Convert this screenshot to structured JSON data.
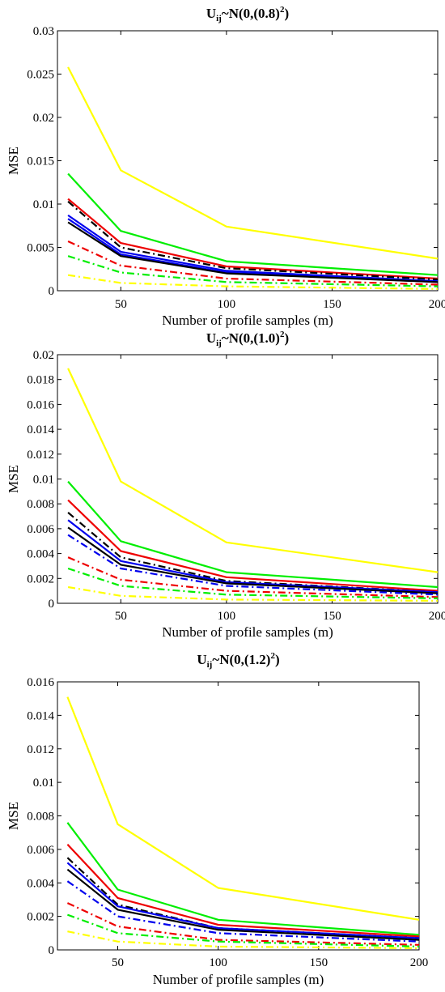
{
  "chart_data": [
    {
      "type": "line",
      "title": {
        "base": "U",
        "sub": "ij",
        "mid": "~N(0,(0.8)",
        "sup": "2",
        "end": ")"
      },
      "xlabel": "Number of profile samples (m)",
      "ylabel": "MSE",
      "x": [
        25,
        50,
        100,
        200
      ],
      "xticks": [
        "50",
        "100",
        "150",
        "200"
      ],
      "xtick_values": [
        50,
        100,
        150,
        200
      ],
      "xlim": [
        20,
        200
      ],
      "ylim": [
        0,
        0.03
      ],
      "yticks": [
        "0",
        "0.005",
        "0.01",
        "0.015",
        "0.02",
        "0.025",
        "0.03"
      ],
      "ytick_values": [
        0,
        0.005,
        0.01,
        0.015,
        0.02,
        0.025,
        0.03
      ],
      "grid": false,
      "series": [
        {
          "color": "#ffff00",
          "dash": "solid",
          "values": [
            0.0258,
            0.0139,
            0.0074,
            0.0037
          ]
        },
        {
          "color": "#00ee00",
          "dash": "solid",
          "values": [
            0.0135,
            0.0069,
            0.0034,
            0.0018
          ]
        },
        {
          "color": "#ee0000",
          "dash": "solid",
          "values": [
            0.0106,
            0.0055,
            0.0028,
            0.0014
          ]
        },
        {
          "color": "#000000",
          "dash": "dashdot",
          "values": [
            0.0103,
            0.005,
            0.0026,
            0.0013
          ]
        },
        {
          "color": "#0000ee",
          "dash": "solid",
          "values": [
            0.0087,
            0.0045,
            0.0023,
            0.0011
          ]
        },
        {
          "color": "#0000ee",
          "dash": "solid",
          "values": [
            0.0083,
            0.0042,
            0.0021,
            0.001
          ]
        },
        {
          "color": "#000000",
          "dash": "solid",
          "values": [
            0.0079,
            0.004,
            0.002,
            0.001
          ]
        },
        {
          "color": "#ee0000",
          "dash": "dashdot",
          "values": [
            0.0057,
            0.0029,
            0.0014,
            0.0007
          ]
        },
        {
          "color": "#00ee00",
          "dash": "dashdot",
          "values": [
            0.004,
            0.0021,
            0.001,
            0.0005
          ]
        },
        {
          "color": "#ffff00",
          "dash": "dashdot",
          "values": [
            0.0018,
            0.0009,
            0.0005,
            0.0002
          ]
        }
      ]
    },
    {
      "type": "line",
      "title": {
        "base": "U",
        "sub": "ij",
        "mid": "~N(0,(1.0)",
        "sup": "2",
        "end": ")"
      },
      "xlabel": "Number of profile samples (m)",
      "ylabel": "MSE",
      "x": [
        25,
        50,
        100,
        200
      ],
      "xticks": [
        "50",
        "100",
        "150",
        "200"
      ],
      "xtick_values": [
        50,
        100,
        150,
        200
      ],
      "xlim": [
        20,
        200
      ],
      "ylim": [
        0,
        0.02
      ],
      "yticks": [
        "0",
        "0.002",
        "0.004",
        "0.006",
        "0.008",
        "0.01",
        "0.012",
        "0.014",
        "0.016",
        "0.018",
        "0.02"
      ],
      "ytick_values": [
        0,
        0.002,
        0.004,
        0.006,
        0.008,
        0.01,
        0.012,
        0.014,
        0.016,
        0.018,
        0.02
      ],
      "grid": false,
      "series": [
        {
          "color": "#ffff00",
          "dash": "solid",
          "values": [
            0.0189,
            0.0098,
            0.0049,
            0.0025
          ]
        },
        {
          "color": "#00ee00",
          "dash": "solid",
          "values": [
            0.0098,
            0.005,
            0.0025,
            0.0013
          ]
        },
        {
          "color": "#ee0000",
          "dash": "solid",
          "values": [
            0.0083,
            0.0042,
            0.0021,
            0.001
          ]
        },
        {
          "color": "#000000",
          "dash": "dashdot",
          "values": [
            0.0073,
            0.0037,
            0.0018,
            0.0009
          ]
        },
        {
          "color": "#0000ee",
          "dash": "solid",
          "values": [
            0.0067,
            0.0034,
            0.0017,
            0.0009
          ]
        },
        {
          "color": "#000000",
          "dash": "solid",
          "values": [
            0.0061,
            0.0031,
            0.0016,
            0.0008
          ]
        },
        {
          "color": "#0000ee",
          "dash": "dashdot",
          "values": [
            0.0055,
            0.0028,
            0.0014,
            0.0007
          ]
        },
        {
          "color": "#ee0000",
          "dash": "dashdot",
          "values": [
            0.0037,
            0.0019,
            0.001,
            0.0005
          ]
        },
        {
          "color": "#00ee00",
          "dash": "dashdot",
          "values": [
            0.0028,
            0.0014,
            0.0007,
            0.0004
          ]
        },
        {
          "color": "#ffff00",
          "dash": "dashdot",
          "values": [
            0.0013,
            0.0006,
            0.0003,
            0.0002
          ]
        }
      ]
    },
    {
      "type": "line",
      "title": {
        "base": "U",
        "sub": "ij",
        "mid": "~N(0,(1.2)",
        "sup": "2",
        "end": ")"
      },
      "xlabel": "Number of profile samples (m)",
      "ylabel": "MSE",
      "x": [
        25,
        50,
        100,
        200
      ],
      "xticks": [
        "50",
        "100",
        "150",
        "200"
      ],
      "xtick_values": [
        50,
        100,
        150,
        200
      ],
      "xlim": [
        20,
        200
      ],
      "ylim": [
        0,
        0.016
      ],
      "yticks": [
        "0",
        "0.002",
        "0.004",
        "0.006",
        "0.008",
        "0.01",
        "0.012",
        "0.014",
        "0.016"
      ],
      "ytick_values": [
        0,
        0.002,
        0.004,
        0.006,
        0.008,
        0.01,
        0.012,
        0.014,
        0.016
      ],
      "grid": false,
      "series": [
        {
          "color": "#ffff00",
          "dash": "solid",
          "values": [
            0.0151,
            0.0075,
            0.0037,
            0.0018
          ]
        },
        {
          "color": "#00ee00",
          "dash": "solid",
          "values": [
            0.0076,
            0.0036,
            0.0018,
            0.0009
          ]
        },
        {
          "color": "#ee0000",
          "dash": "solid",
          "values": [
            0.0063,
            0.0031,
            0.0015,
            0.0008
          ]
        },
        {
          "color": "#000000",
          "dash": "dashdot",
          "values": [
            0.0055,
            0.0027,
            0.0013,
            0.0007
          ]
        },
        {
          "color": "#0000ee",
          "dash": "solid",
          "values": [
            0.0052,
            0.0026,
            0.0013,
            0.0007
          ]
        },
        {
          "color": "#000000",
          "dash": "solid",
          "values": [
            0.0048,
            0.0024,
            0.0012,
            0.0006
          ]
        },
        {
          "color": "#0000ee",
          "dash": "dashdot",
          "values": [
            0.0041,
            0.002,
            0.001,
            0.0005
          ]
        },
        {
          "color": "#ee0000",
          "dash": "dashdot",
          "values": [
            0.0028,
            0.0014,
            0.0006,
            0.0003
          ]
        },
        {
          "color": "#00ee00",
          "dash": "dashdot",
          "values": [
            0.0021,
            0.001,
            0.0005,
            0.0002
          ]
        },
        {
          "color": "#ffff00",
          "dash": "dashdot",
          "values": [
            0.0011,
            0.0005,
            0.0002,
            0.0001
          ]
        }
      ]
    }
  ]
}
